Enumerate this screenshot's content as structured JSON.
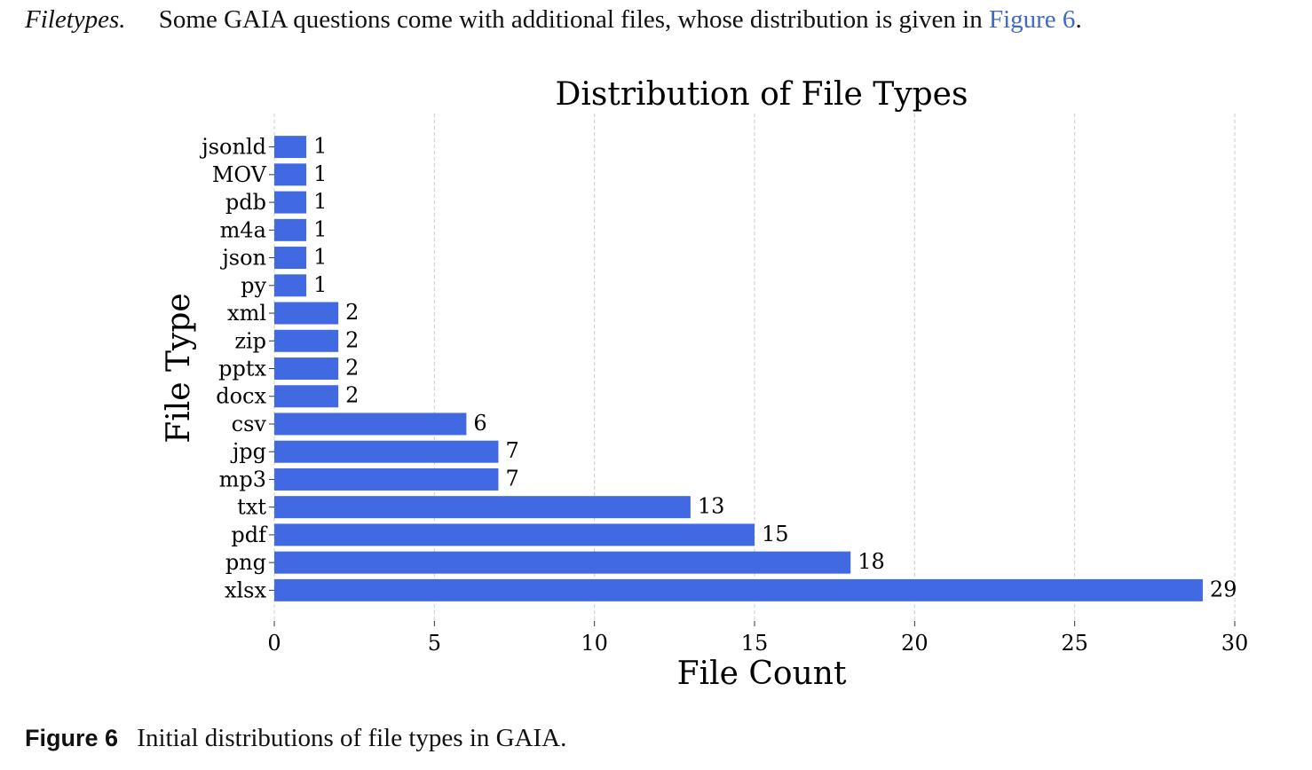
{
  "intro": {
    "lead": "Filetypes.",
    "text": "Some GAIA questions come with additional files, whose distribution is given in",
    "ref": "Figure 6",
    "end": "."
  },
  "caption": {
    "label": "Figure 6",
    "text": "Initial distributions of file types in GAIA."
  },
  "colors": {
    "bar": "#4169e1",
    "grid": "#cccccc",
    "link": "#4169c8"
  },
  "chart_data": {
    "type": "bar",
    "orientation": "horizontal",
    "title": "Distribution of File Types",
    "xlabel": "File Count",
    "ylabel": "File Type",
    "categories": [
      "jsonld",
      "MOV",
      "pdb",
      "m4a",
      "json",
      "py",
      "xml",
      "zip",
      "pptx",
      "docx",
      "csv",
      "jpg",
      "mp3",
      "txt",
      "pdf",
      "png",
      "xlsx"
    ],
    "values": [
      1,
      1,
      1,
      1,
      1,
      1,
      2,
      2,
      2,
      2,
      6,
      7,
      7,
      13,
      15,
      18,
      29
    ],
    "xlim": [
      0,
      30
    ],
    "xticks": [
      0,
      5,
      10,
      15,
      20,
      25,
      30
    ],
    "grid": "vertical dashed",
    "data_labels": true
  }
}
